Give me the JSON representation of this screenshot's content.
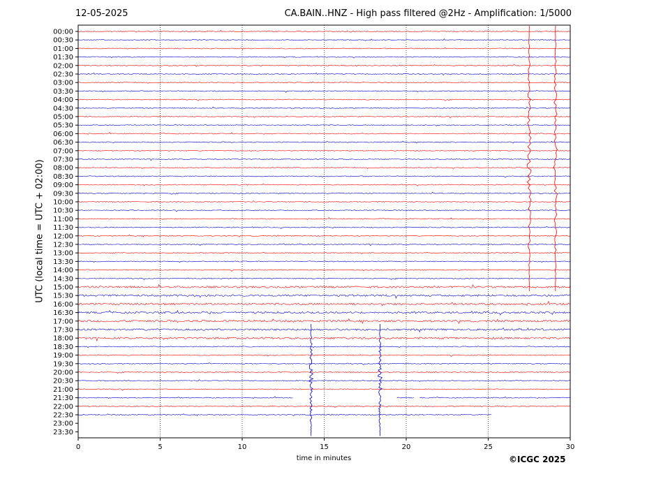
{
  "header": {
    "date": "12-05-2025",
    "title": "CA.BAIN..HNZ - High pass filtered @2Hz - Amplification: 1/5000"
  },
  "footer": {
    "copyright": "©ICGC 2025"
  },
  "colors": {
    "trace_a": "#ff0000",
    "trace_b": "#0000cc",
    "grid": "#000000",
    "axis": "#000000"
  },
  "chart_data": {
    "type": "line",
    "subtype": "helicorder",
    "xlabel": "time in minutes",
    "ylabel": "UTC (local time = UTC + 02:00)",
    "xlim": [
      0,
      30
    ],
    "x_ticks": [
      0,
      5,
      10,
      15,
      20,
      25,
      30
    ],
    "grid": "vertical dotted lines at x ticks",
    "row_labels": [
      "00:00",
      "00:30",
      "01:00",
      "01:30",
      "02:00",
      "02:30",
      "03:00",
      "03:30",
      "04:00",
      "04:30",
      "05:00",
      "05:30",
      "06:00",
      "06:30",
      "07:00",
      "07:30",
      "08:00",
      "08:30",
      "09:00",
      "09:30",
      "10:00",
      "10:30",
      "11:00",
      "11:30",
      "12:00",
      "12:30",
      "13:00",
      "13:30",
      "14:00",
      "14:30",
      "15:00",
      "15:30",
      "16:00",
      "16:30",
      "17:00",
      "17:30",
      "18:00",
      "18:30",
      "19:00",
      "19:30",
      "20:00",
      "20:30",
      "21:00",
      "21:30",
      "22:00",
      "22:30",
      "23:00",
      "23:30"
    ],
    "trace_colors_alternate": [
      "red",
      "blue"
    ],
    "traces_end_row": "22:30",
    "last_trace_end_minute": 25.2,
    "gaps": [
      {
        "row": "21:30",
        "from_minute": 13.1,
        "to_minute": 19.4
      },
      {
        "row": "21:30",
        "from_minute": 20.5,
        "to_minute": 20.8
      }
    ],
    "events": [
      {
        "start_row": "00:00",
        "end_row": "15:00",
        "minute": 27.5,
        "color": "red",
        "description": "large amplitude spike"
      },
      {
        "start_row": "00:00",
        "end_row": "15:00",
        "minute": 29.1,
        "color": "red",
        "description": "large amplitude spike"
      },
      {
        "start_row": "17:30",
        "end_row": "23:30",
        "minute": 14.2,
        "color": "blue",
        "description": "spike"
      },
      {
        "start_row": "17:30",
        "end_row": "23:30",
        "minute": 18.4,
        "color": "blue",
        "description": "spike"
      }
    ]
  }
}
